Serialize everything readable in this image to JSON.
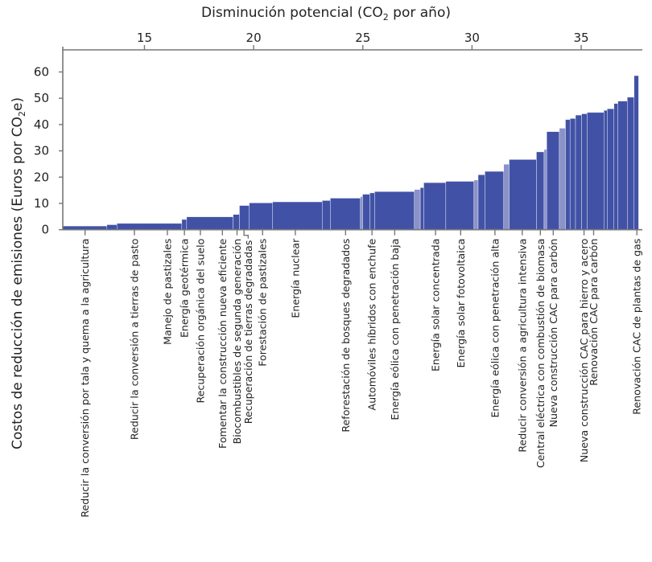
{
  "chart_data": {
    "type": "bar",
    "subtype": "marginal-abatement-cost-curve (variable-width bars)",
    "xlabel": {
      "before": "Disminución potencial (CO",
      "sub": "2",
      "after": " por año)"
    },
    "ylabel": {
      "before": "Costos de reducción de emisiones (Euros por CO",
      "sub": "2",
      "after": "e)"
    },
    "x_axis_position": "top",
    "xlim": [
      11.26,
      37.8
    ],
    "ylim": [
      0,
      60
    ],
    "x_ticks": [
      15,
      20,
      25,
      30,
      35
    ],
    "y_ticks": [
      0,
      10,
      20,
      30,
      40,
      50,
      60
    ],
    "grid": false,
    "colors": {
      "bar": "#4152a6",
      "bar_light": "#8a92c9",
      "axis": "#777777"
    },
    "bars": [
      {
        "x0": 11.26,
        "x1": 13.28,
        "value": 1.4
      },
      {
        "x0": 13.28,
        "x1": 13.74,
        "value": 1.9
      },
      {
        "x0": 13.74,
        "x1": 16.71,
        "value": 2.4
      },
      {
        "x0": 16.71,
        "x1": 16.93,
        "value": 3.9
      },
      {
        "x0": 16.93,
        "x1": 19.06,
        "value": 4.9
      },
      {
        "x0": 19.06,
        "x1": 19.35,
        "value": 5.8
      },
      {
        "x0": 19.35,
        "x1": 19.8,
        "value": 9.2
      },
      {
        "x0": 19.8,
        "x1": 20.87,
        "value": 10.2
      },
      {
        "x0": 20.87,
        "x1": 23.14,
        "value": 10.6
      },
      {
        "x0": 23.14,
        "x1": 23.51,
        "value": 11.1
      },
      {
        "x0": 23.51,
        "x1": 24.89,
        "value": 12.0
      },
      {
        "x0": 24.89,
        "x1": 24.99,
        "value": 12.6,
        "shade": "light"
      },
      {
        "x0": 24.99,
        "x1": 25.32,
        "value": 13.5
      },
      {
        "x0": 25.32,
        "x1": 25.54,
        "value": 14.0
      },
      {
        "x0": 25.54,
        "x1": 27.36,
        "value": 14.5
      },
      {
        "x0": 27.36,
        "x1": 27.63,
        "value": 15.3,
        "shade": "light"
      },
      {
        "x0": 27.63,
        "x1": 27.79,
        "value": 16.0
      },
      {
        "x0": 27.79,
        "x1": 28.8,
        "value": 17.9
      },
      {
        "x0": 28.8,
        "x1": 30.09,
        "value": 18.4
      },
      {
        "x0": 30.09,
        "x1": 30.28,
        "value": 18.9,
        "shade": "light"
      },
      {
        "x0": 30.28,
        "x1": 30.59,
        "value": 20.9
      },
      {
        "x0": 30.59,
        "x1": 31.45,
        "value": 22.2
      },
      {
        "x0": 31.45,
        "x1": 31.7,
        "value": 24.9,
        "shade": "light"
      },
      {
        "x0": 31.7,
        "x1": 32.95,
        "value": 26.7
      },
      {
        "x0": 32.95,
        "x1": 33.3,
        "value": 29.6
      },
      {
        "x0": 33.3,
        "x1": 33.42,
        "value": 30.5,
        "shade": "light"
      },
      {
        "x0": 33.42,
        "x1": 34.0,
        "value": 37.3
      },
      {
        "x0": 34.0,
        "x1": 34.28,
        "value": 38.6,
        "shade": "light"
      },
      {
        "x0": 34.28,
        "x1": 34.49,
        "value": 41.9
      },
      {
        "x0": 34.49,
        "x1": 34.74,
        "value": 42.3
      },
      {
        "x0": 34.74,
        "x1": 35.02,
        "value": 43.6
      },
      {
        "x0": 35.02,
        "x1": 35.27,
        "value": 44.1
      },
      {
        "x0": 35.27,
        "x1": 36.04,
        "value": 44.6
      },
      {
        "x0": 36.04,
        "x1": 36.19,
        "value": 45.4
      },
      {
        "x0": 36.19,
        "x1": 36.5,
        "value": 46.0
      },
      {
        "x0": 36.5,
        "x1": 36.68,
        "value": 48.0
      },
      {
        "x0": 36.68,
        "x1": 37.11,
        "value": 48.9
      },
      {
        "x0": 37.11,
        "x1": 37.42,
        "value": 50.4
      },
      {
        "x0": 37.42,
        "x1": 37.63,
        "value": 58.6
      }
    ],
    "annotations": [
      {
        "x": 12.28,
        "text": "Reducir la conversión por tala y quema a la agricultura"
      },
      {
        "x": 14.54,
        "text": "Reducir la conversión a tierras de pasto"
      },
      {
        "x": 16.05,
        "text": "Manejo de pastizales"
      },
      {
        "x": 16.83,
        "text": "Energía geotérmica"
      },
      {
        "x": 17.56,
        "text": "Recuperación orgánica del suelo"
      },
      {
        "x": 18.57,
        "text": "Fomentar la construcción nueva eficiente"
      },
      {
        "x": 19.24,
        "text": "Biocombustibles de segunda generación"
      },
      {
        "x": 19.56,
        "text": "Recuperación de tierras degradadas",
        "label_x": 19.75
      },
      {
        "x": 20.41,
        "text": "Forestación de pastizales"
      },
      {
        "x": 21.91,
        "text": "Energía nuclear"
      },
      {
        "x": 24.21,
        "text": "Reforestación de bosques degradados"
      },
      {
        "x": 25.42,
        "text": "Automóviles híbridos con enchufe"
      },
      {
        "x": 26.46,
        "text": "Energía eólica con penetración baja"
      },
      {
        "x": 28.33,
        "text": "Energía solar concentrada"
      },
      {
        "x": 29.48,
        "text": "Energía solar fotovoltaica"
      },
      {
        "x": 31.05,
        "text": "Energía eólica con penetración alta"
      },
      {
        "x": 32.3,
        "text": "Reducir conversión a agricultura intensiva"
      },
      {
        "x": 33.13,
        "text": "Central eléctrica con combustión de biomasa"
      },
      {
        "x": 33.72,
        "text": "Nueva construcción CAC para carbón"
      },
      {
        "x": 35.13,
        "text": "Nueva construcción CAC para hierro y acero"
      },
      {
        "x": 35.57,
        "text": "Renovación CAC para carbón"
      },
      {
        "x": 37.55,
        "text": "Renovación CAC de plantas de gas"
      }
    ]
  }
}
